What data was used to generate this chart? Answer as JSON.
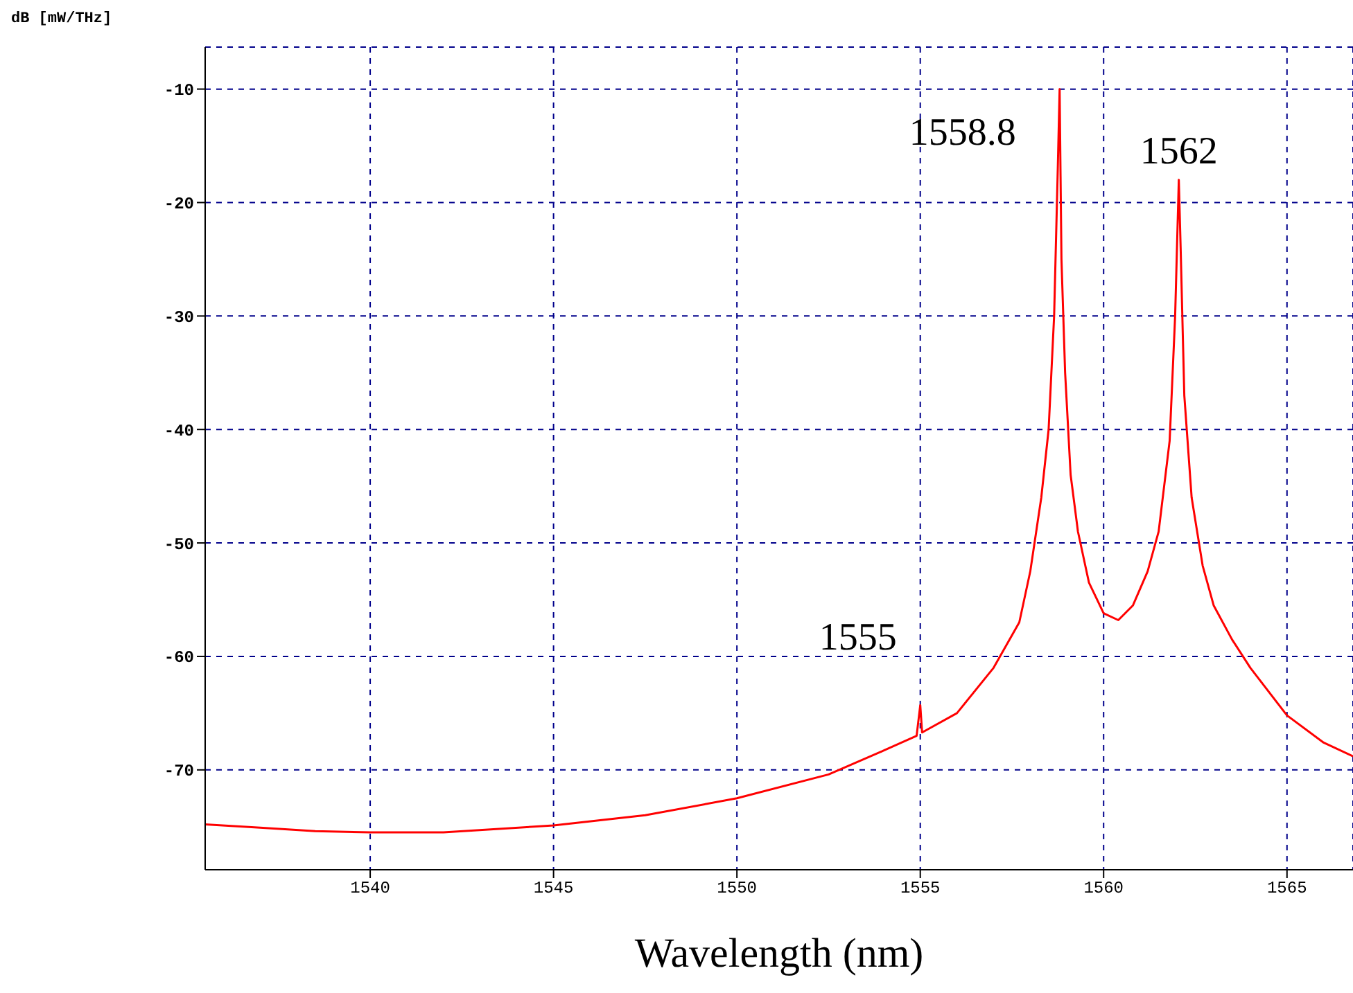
{
  "chart_data": {
    "type": "line",
    "ylabel": "dB [mW/THz]",
    "xlabel": "Wavelength (nm)",
    "x": [
      1535.5,
      1537,
      1538.5,
      1540,
      1542,
      1545,
      1547.5,
      1550,
      1552.5,
      1554,
      1554.9,
      1555,
      1555.05,
      1556,
      1557,
      1557.7,
      1558,
      1558.3,
      1558.5,
      1558.65,
      1558.75,
      1558.8,
      1558.85,
      1558.95,
      1559.1,
      1559.3,
      1559.6,
      1560,
      1560.4,
      1560.8,
      1561.2,
      1561.5,
      1561.8,
      1561.95,
      1562.05,
      1562.1,
      1562.2,
      1562.4,
      1562.7,
      1563,
      1563.5,
      1564,
      1565,
      1566,
      1566.8
    ],
    "series": [
      {
        "color": "#ff0000",
        "values": [
          -74.8,
          -75.1,
          -75.4,
          -75.5,
          -75.5,
          -74.9,
          -74,
          -72.5,
          -70.4,
          -68.3,
          -67,
          -64.3,
          -66.7,
          -65,
          -61,
          -57,
          -52.5,
          -46,
          -40,
          -30,
          -17,
          -10,
          -25,
          -35,
          -44,
          -49,
          -53.5,
          -56.2,
          -56.8,
          -55.5,
          -52.5,
          -49,
          -41,
          -30,
          -18,
          -24,
          -37,
          -46,
          -52,
          -55.5,
          -58.5,
          -61,
          -65.2,
          -67.6,
          -68.8
        ]
      }
    ],
    "xlim": [
      1535.5,
      1566.8
    ],
    "ylim": [
      -78.8,
      -6.3
    ],
    "xticks": [
      1540,
      1545,
      1550,
      1555,
      1560,
      1565
    ],
    "yticks": [
      -10,
      -20,
      -30,
      -40,
      -50,
      -60,
      -70
    ],
    "grid": true,
    "marker": "none",
    "line_style": "solid",
    "annotations": [
      {
        "text": "1558.8",
        "x": 1558.8,
        "y": -10
      },
      {
        "text": "1562",
        "x": 1562.05,
        "y": -18
      },
      {
        "text": "1555",
        "x": 1555,
        "y": -64.3
      }
    ]
  }
}
